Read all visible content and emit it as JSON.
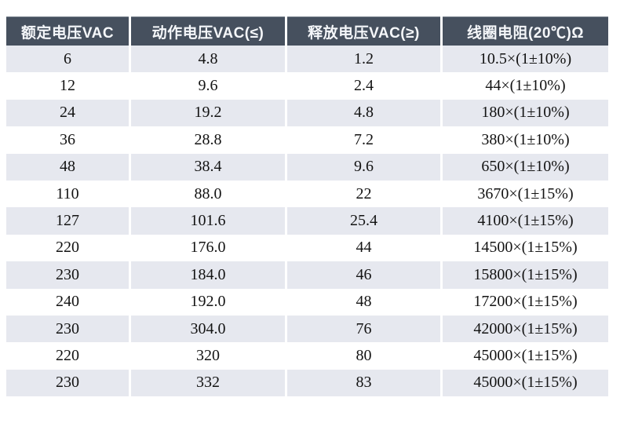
{
  "table": {
    "title": "relay-coil-voltage-spec-table",
    "columns": [
      "额定电压VAC",
      "动作电压VAC(≤)",
      "释放电压VAC(≥)",
      "线圈电阻(20℃)Ω"
    ],
    "rows": [
      [
        "6",
        "4.8",
        "1.2",
        "10.5×(1±10%)"
      ],
      [
        "12",
        "9.6",
        "2.4",
        "44×(1±10%)"
      ],
      [
        "24",
        "19.2",
        "4.8",
        "180×(1±10%)"
      ],
      [
        "36",
        "28.8",
        "7.2",
        "380×(1±10%)"
      ],
      [
        "48",
        "38.4",
        "9.6",
        "650×(1±10%)"
      ],
      [
        "110",
        "88.0",
        "22",
        "3670×(1±15%)"
      ],
      [
        "127",
        "101.6",
        "25.4",
        "4100×(1±15%)"
      ],
      [
        "220",
        "176.0",
        "44",
        "14500×(1±15%)"
      ],
      [
        "230",
        "184.0",
        "46",
        "15800×(1±15%)"
      ],
      [
        "240",
        "192.0",
        "48",
        "17200×(1±15%)"
      ],
      [
        "230",
        "304.0",
        "76",
        "42000×(1±15%)"
      ],
      [
        "220",
        "320",
        "80",
        "45000×(1±15%)"
      ],
      [
        "230",
        "332",
        "83",
        "45000×(1±15%)"
      ]
    ]
  },
  "colors": {
    "header_bg": "#46505e",
    "header_text": "#f5f7fa",
    "row_alt_bg": "#e6e8ef",
    "row_bg": "#ffffff",
    "body_text": "#131313",
    "divider": "#ffffff",
    "page_bg": "#ffffff"
  }
}
